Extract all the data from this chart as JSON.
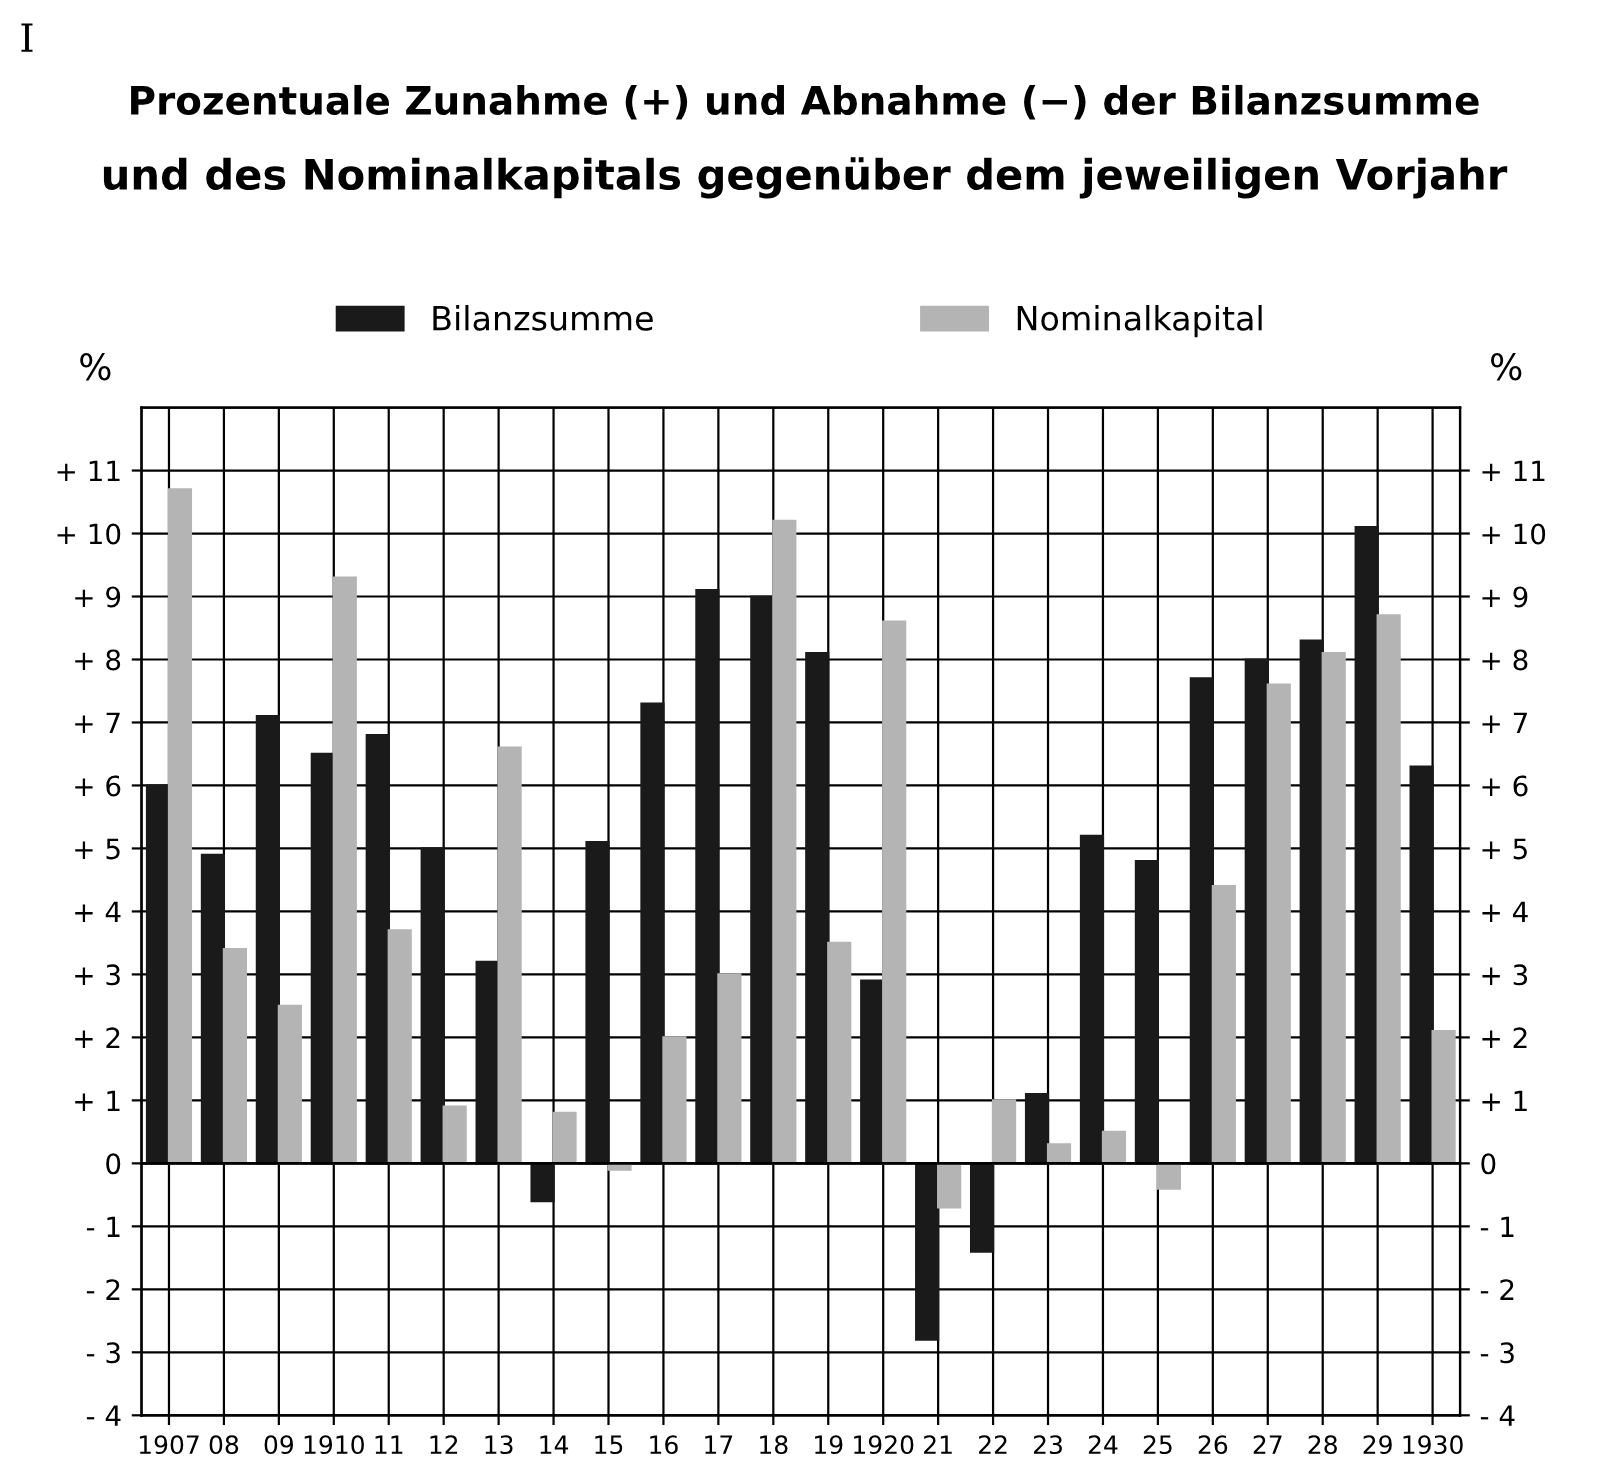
{
  "chart_data": {
    "type": "bar",
    "title": "Prozentuale Zunahme (+) und Abnahme (−) der Bilanzsumme",
    "subtitle": "und des Nominalkapitals gegenüber dem jeweiligen Vorjahr",
    "ylabel": "%",
    "y2label": "%",
    "annotations": [
      "I"
    ],
    "categories": [
      "1907",
      "08",
      "09",
      "1910",
      "11",
      "12",
      "13",
      "14",
      "15",
      "16",
      "17",
      "18",
      "19",
      "1920",
      "21",
      "22",
      "23",
      "24",
      "25",
      "26",
      "27",
      "28",
      "29",
      "1930"
    ],
    "series": [
      {
        "name": "Bilanzsumme",
        "color": "#1a1a1a",
        "values": [
          6.0,
          4.9,
          7.1,
          6.5,
          6.8,
          5.0,
          3.2,
          -0.6,
          5.1,
          7.3,
          9.1,
          9.0,
          8.1,
          2.9,
          -2.8,
          -1.4,
          1.1,
          5.2,
          4.8,
          7.7,
          8.0,
          8.3,
          10.1,
          6.3
        ]
      },
      {
        "name": "Nominalkapital",
        "color": "#b4b4b4",
        "values": [
          10.7,
          3.4,
          2.5,
          9.3,
          3.7,
          0.9,
          6.6,
          0.8,
          -0.1,
          2.0,
          3.0,
          10.2,
          3.5,
          8.6,
          -0.7,
          1.0,
          0.3,
          0.5,
          -0.4,
          4.4,
          7.6,
          8.1,
          8.7,
          2.1
        ]
      }
    ],
    "ylim": [
      -4,
      12
    ],
    "yticks": [
      {
        "value": -4,
        "label": "- 4"
      },
      {
        "value": -3,
        "label": "- 3"
      },
      {
        "value": -2,
        "label": "- 2"
      },
      {
        "value": -1,
        "label": "- 1"
      },
      0,
      {
        "value": 1,
        "label": "+ 1"
      },
      {
        "value": 2,
        "label": "+ 2"
      },
      {
        "value": 3,
        "label": "+ 3"
      },
      {
        "value": 4,
        "label": "+ 4"
      },
      {
        "value": 5,
        "label": "+ 5"
      },
      {
        "value": 6,
        "label": "+ 6"
      },
      {
        "value": 7,
        "label": "+ 7"
      },
      {
        "value": 8,
        "label": "+ 8"
      },
      {
        "value": 9,
        "label": "+ 9"
      },
      {
        "value": 10,
        "label": "+ 10"
      },
      {
        "value": 11,
        "label": "+ 11"
      }
    ],
    "y2lim": [
      -4,
      12
    ],
    "y2ticks": [
      {
        "value": -4,
        "label": "- 4"
      },
      {
        "value": -3,
        "label": "- 3"
      },
      {
        "value": -2,
        "label": "- 2"
      },
      {
        "value": -1,
        "label": "- 1"
      },
      0,
      {
        "value": 1,
        "label": "+ 1"
      },
      {
        "value": 2,
        "label": "+ 2"
      },
      {
        "value": 3,
        "label": "+ 3"
      },
      {
        "value": 4,
        "label": "+ 4"
      },
      {
        "value": 5,
        "label": "+ 5"
      },
      {
        "value": 6,
        "label": "+ 6"
      },
      {
        "value": 7,
        "label": "+ 7"
      },
      {
        "value": 8,
        "label": "+ 8"
      },
      {
        "value": 9,
        "label": "+ 9"
      },
      {
        "value": 10,
        "label": "+ 10"
      },
      {
        "value": 11,
        "label": "+ 11"
      }
    ],
    "grid": true,
    "legend": "top"
  }
}
